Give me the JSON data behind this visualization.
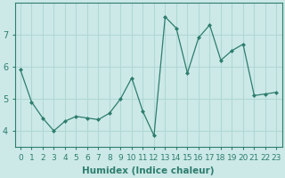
{
  "x": [
    0,
    1,
    2,
    3,
    4,
    5,
    6,
    7,
    8,
    9,
    10,
    11,
    12,
    13,
    14,
    15,
    16,
    17,
    18,
    19,
    20,
    21,
    22,
    23
  ],
  "y": [
    5.9,
    4.9,
    4.4,
    4.0,
    4.3,
    4.45,
    4.4,
    4.35,
    4.55,
    5.0,
    5.65,
    4.6,
    3.85,
    7.55,
    7.2,
    5.8,
    6.9,
    7.3,
    6.2,
    6.5,
    6.7,
    5.1,
    5.15,
    5.2
  ],
  "line_color": "#2e7d6e",
  "marker": "D",
  "marker_size": 2.0,
  "bg_color": "#cce9e7",
  "grid_color": "#b0d8d5",
  "xlabel": "Humidex (Indice chaleur)",
  "ylim": [
    3.5,
    8.0
  ],
  "xlim": [
    -0.5,
    23.5
  ],
  "yticks": [
    4,
    5,
    6,
    7
  ],
  "xticks": [
    0,
    1,
    2,
    3,
    4,
    5,
    6,
    7,
    8,
    9,
    10,
    11,
    12,
    13,
    14,
    15,
    16,
    17,
    18,
    19,
    20,
    21,
    22,
    23
  ],
  "tick_color": "#2e7d6e",
  "label_fontsize": 6.5,
  "xlabel_fontsize": 7.5
}
